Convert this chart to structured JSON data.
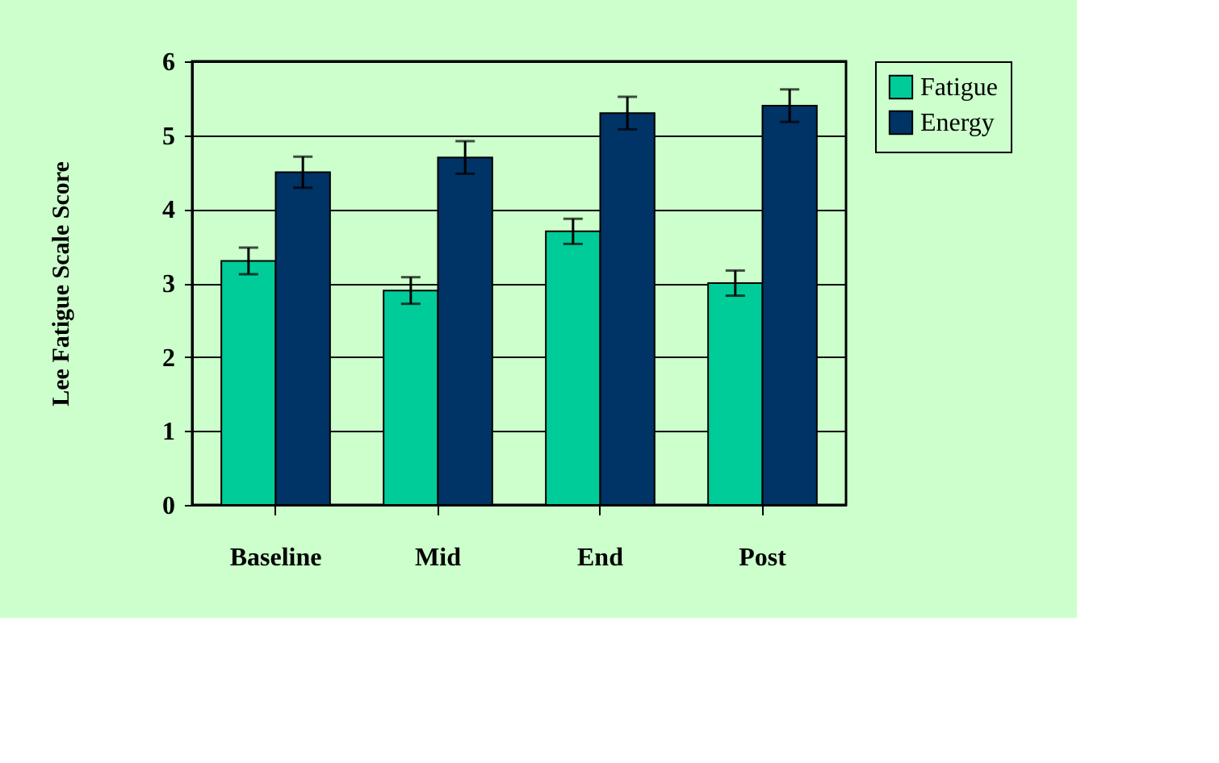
{
  "chart_data": {
    "type": "bar",
    "ylabel": "Lee Fatigue Scale Score",
    "categories": [
      "Baseline",
      "Mid",
      "End",
      "Post"
    ],
    "series": [
      {
        "name": "Fatigue",
        "color": "#00cc99",
        "values": [
          3.3,
          2.9,
          3.7,
          3.0
        ],
        "errors": [
          0.18,
          0.18,
          0.17,
          0.17
        ]
      },
      {
        "name": "Energy",
        "color": "#003366",
        "values": [
          4.5,
          4.7,
          5.3,
          5.4
        ],
        "errors": [
          0.21,
          0.22,
          0.22,
          0.22
        ]
      }
    ],
    "ylim": [
      0,
      6
    ],
    "yticks": [
      0,
      1,
      2,
      3,
      4,
      5,
      6
    ],
    "grid": "y",
    "legend": "right"
  }
}
